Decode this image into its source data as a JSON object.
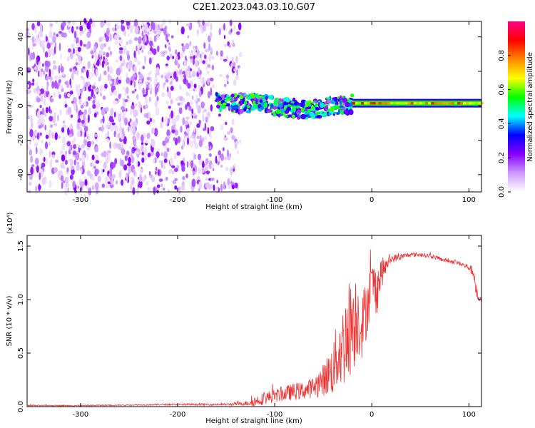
{
  "title": "C2E1.2023.043.03.10.G07",
  "chart_data": [
    {
      "type": "heatmap",
      "xlabel": "Height of straight line (km)",
      "ylabel": "Frequency (Hz)",
      "xlim": [
        -355,
        113
      ],
      "ylim": [
        -50,
        49
      ],
      "xticks": [
        -300,
        -200,
        -100,
        0,
        100
      ],
      "yticks": [
        -40,
        -20,
        0,
        20,
        40
      ],
      "colorbar": {
        "label": "Normalized spectral amplitude",
        "range": [
          0,
          1
        ],
        "ticks": [
          0.0,
          0.2,
          0.4,
          0.6,
          0.8
        ],
        "colormap": "rainbow",
        "colors": [
          "#ffffff",
          "#cc99ff",
          "#8800ff",
          "#0000ff",
          "#00ffff",
          "#00ff00",
          "#ffff00",
          "#ff8800",
          "#ff0000",
          "#ff0088"
        ]
      },
      "regions": [
        {
          "x": [
            -355,
            -135
          ],
          "y": [
            -50,
            49
          ],
          "description": "broadband noise, amplitude 0.05-0.25"
        },
        {
          "x": [
            -160,
            -20
          ],
          "y": [
            -12,
            8
          ],
          "description": "signal band, amplitude 0.2-0.6"
        },
        {
          "x": [
            -20,
            113
          ],
          "y": [
            0,
            3
          ],
          "description": "narrow carrier line near 1.5 Hz, amplitude 0.6-0.9"
        }
      ]
    },
    {
      "type": "line",
      "xlabel": "Height of straight line (km)",
      "ylabel": "SNR (10 * v/v)",
      "multiplier_label": "(x10⁴)",
      "xlim": [
        -355,
        113
      ],
      "ylim": [
        0,
        1.6
      ],
      "xticks": [
        -300,
        -200,
        -100,
        0,
        100
      ],
      "yticks": [
        0.0,
        0.5,
        1.0,
        1.5
      ],
      "series": [
        {
          "color": "#ee3333",
          "x": [
            -355,
            -300,
            -250,
            -200,
            -150,
            -130,
            -120,
            -110,
            -100,
            -90,
            -80,
            -70,
            -60,
            -50,
            -40,
            -35,
            -30,
            -25,
            -20,
            -15,
            -10,
            -5,
            0,
            5,
            10,
            15,
            20,
            30,
            40,
            50,
            60,
            70,
            80,
            90,
            100,
            105,
            108,
            110,
            113
          ],
          "y": [
            0.01,
            0.01,
            0.015,
            0.02,
            0.02,
            0.03,
            0.05,
            0.08,
            0.1,
            0.12,
            0.14,
            0.15,
            0.18,
            0.25,
            0.35,
            0.5,
            0.55,
            0.7,
            0.8,
            0.85,
            0.75,
            0.95,
            1.15,
            1.1,
            1.25,
            1.32,
            1.38,
            1.4,
            1.42,
            1.42,
            1.41,
            1.38,
            1.36,
            1.34,
            1.3,
            1.25,
            1.05,
            1.0,
            1.0
          ],
          "noise_amplitude": [
            0.005,
            0.005,
            0.005,
            0.008,
            0.01,
            0.02,
            0.05,
            0.06,
            0.06,
            0.07,
            0.08,
            0.08,
            0.1,
            0.15,
            0.25,
            0.35,
            0.4,
            0.45,
            0.5,
            0.4,
            0.3,
            0.3,
            0.2,
            0.25,
            0.15,
            0.06,
            0.04,
            0.03,
            0.02,
            0.02,
            0.02,
            0.02,
            0.02,
            0.02,
            0.03,
            0.06,
            0.08,
            0.03,
            0.02
          ]
        }
      ]
    }
  ]
}
